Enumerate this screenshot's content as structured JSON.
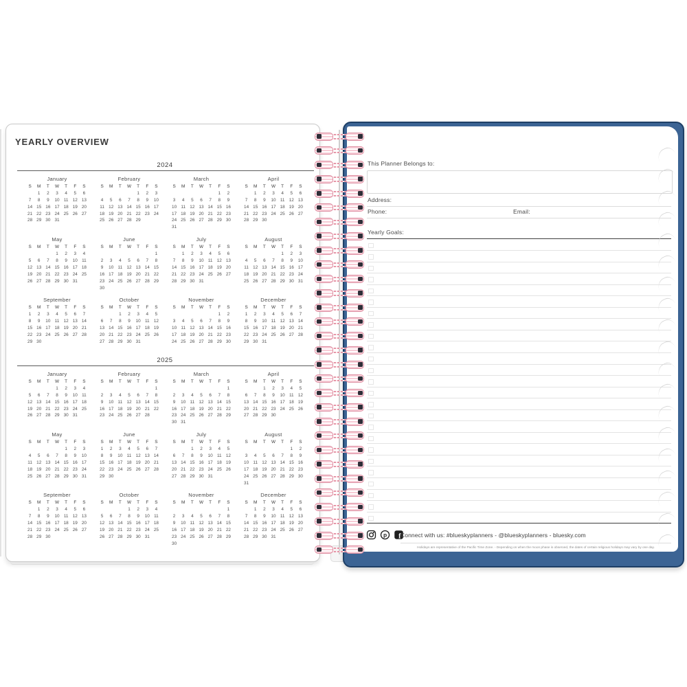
{
  "left_page": {
    "title": "YEARLY OVERVIEW"
  },
  "calendar": {
    "weekday_headers": [
      "S",
      "M",
      "T",
      "W",
      "T",
      "F",
      "S"
    ],
    "years": [
      {
        "label": "2024",
        "months": [
          {
            "name": "January",
            "first_day": 1,
            "days": 31
          },
          {
            "name": "February",
            "first_day": 4,
            "days": 29
          },
          {
            "name": "March",
            "first_day": 5,
            "days": 31
          },
          {
            "name": "April",
            "first_day": 1,
            "days": 30
          },
          {
            "name": "May",
            "first_day": 3,
            "days": 31
          },
          {
            "name": "June",
            "first_day": 6,
            "days": 30
          },
          {
            "name": "July",
            "first_day": 1,
            "days": 31
          },
          {
            "name": "August",
            "first_day": 4,
            "days": 31
          },
          {
            "name": "September",
            "first_day": 0,
            "days": 30
          },
          {
            "name": "October",
            "first_day": 2,
            "days": 31
          },
          {
            "name": "November",
            "first_day": 5,
            "days": 30
          },
          {
            "name": "December",
            "first_day": 0,
            "days": 31
          }
        ]
      },
      {
        "label": "2025",
        "months": [
          {
            "name": "January",
            "first_day": 3,
            "days": 31
          },
          {
            "name": "February",
            "first_day": 6,
            "days": 28
          },
          {
            "name": "March",
            "first_day": 6,
            "days": 31
          },
          {
            "name": "April",
            "first_day": 2,
            "days": 30
          },
          {
            "name": "May",
            "first_day": 4,
            "days": 31
          },
          {
            "name": "June",
            "first_day": 0,
            "days": 30
          },
          {
            "name": "July",
            "first_day": 2,
            "days": 31
          },
          {
            "name": "August",
            "first_day": 5,
            "days": 31
          },
          {
            "name": "September",
            "first_day": 1,
            "days": 30
          },
          {
            "name": "October",
            "first_day": 3,
            "days": 31
          },
          {
            "name": "November",
            "first_day": 6,
            "days": 30
          },
          {
            "name": "December",
            "first_day": 1,
            "days": 31
          }
        ]
      }
    ]
  },
  "right_page": {
    "belongs_label": "This Planner Belongs to:",
    "address_label": "Address:",
    "phone_label": "Phone:",
    "email_label": "Email:",
    "goals_label": "Yearly Goals:",
    "goals_rows": 25,
    "footer": {
      "icons": [
        "instagram-icon",
        "pinterest-icon",
        "facebook-icon"
      ],
      "connect_text": "Connect with us: #blueskyplanners - @blueskyplanners - bluesky.com",
      "disclaimer": "Holidays are representative of the Pacific Time Zone.  -  Depending on when the moon phase is observed, the dates of certain religious holidays may vary by one day."
    }
  },
  "binding": {
    "coil_count": 30
  },
  "decor": {
    "page_stack_marks": 19
  },
  "colors": {
    "cover_blue": "#3c6494",
    "cover_outline": "#1e3f66",
    "coil_pink": "#f2bdc8",
    "coil_stripe_dark": "#2e2e38",
    "text_dark": "#3f3f3f",
    "line_light": "#dcdcdc"
  }
}
